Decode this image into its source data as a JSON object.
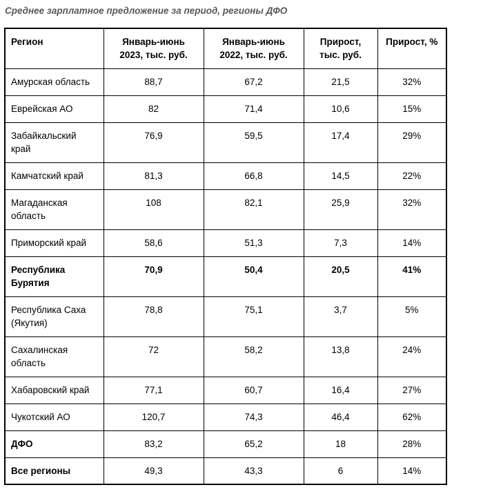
{
  "title": "Среднее зарплатное предложение за период, регионы ДФО",
  "chart_data": {
    "type": "table",
    "title": "Среднее зарплатное предложение за период, регионы ДФО",
    "columns": [
      "Регион",
      "Январь-июнь 2023, тыс. руб.",
      "Январь-июнь 2022, тыс. руб.",
      "Прирост, тыс. руб.",
      "Прирост, %"
    ],
    "header_lines": [
      {
        "l1": "Регион",
        "l2": ""
      },
      {
        "l1": "Январь-июнь",
        "l2": "2023, тыс. руб."
      },
      {
        "l1": "Январь-июнь",
        "l2": "2022, тыс. руб."
      },
      {
        "l1": "Прирост,",
        "l2": "тыс. руб."
      },
      {
        "l1": "Прирост, %",
        "l2": ""
      }
    ],
    "rows": [
      [
        "Амурская область",
        "88,7",
        "67,2",
        "21,5",
        "32%"
      ],
      [
        "Еврейская АО",
        "82",
        "71,4",
        "10,6",
        "15%"
      ],
      [
        "Забайкальский край",
        "76,9",
        "59,5",
        "17,4",
        "29%"
      ],
      [
        "Камчатский край",
        "81,3",
        "66,8",
        "14,5",
        "22%"
      ],
      [
        "Магаданская область",
        "108",
        "82,1",
        "25,9",
        "32%"
      ],
      [
        "Приморский край",
        "58,6",
        "51,3",
        "7,3",
        "14%"
      ],
      [
        "Республика Бурятия",
        "70,9",
        "50,4",
        "20,5",
        "41%"
      ],
      [
        "Республика Саха (Якутия)",
        "78,8",
        "75,1",
        "3,7",
        "5%"
      ],
      [
        "Сахалинская область",
        "72",
        "58,2",
        "13,8",
        "24%"
      ],
      [
        "Хабаровский край",
        "77,1",
        "60,7",
        "16,4",
        "27%"
      ],
      [
        "Чукотский АО",
        "120,7",
        "74,3",
        "46,4",
        "62%"
      ],
      [
        "ДФО",
        "83,2",
        "65,2",
        "18",
        "28%"
      ],
      [
        "Все регионы",
        "49,3",
        "43,3",
        "6",
        "14%"
      ]
    ]
  },
  "colors": {
    "title_text": "#595959",
    "table_border": "#000000",
    "cell_text": "#000000",
    "background": "#ffffff"
  }
}
